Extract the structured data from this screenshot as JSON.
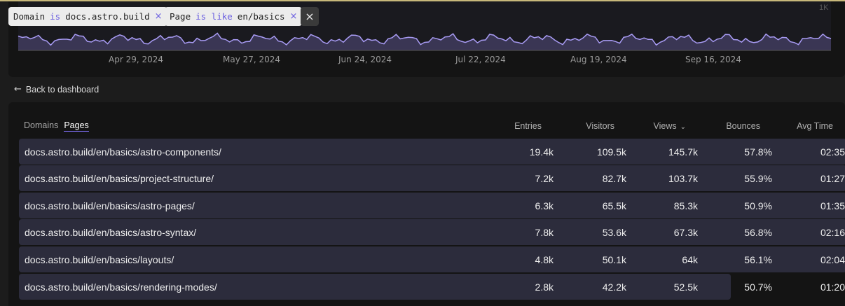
{
  "filters": [
    {
      "field": "Domain",
      "operator": "is",
      "value": "docs.astro.build",
      "remove_icon": "close-icon"
    },
    {
      "field": "Page",
      "operator": "is like",
      "value": "en/basics",
      "remove_icon": "close-icon"
    }
  ],
  "clear_icon": "×",
  "chart": {
    "axis_top_label": "1K",
    "x_labels": [
      "Apr 29, 2024",
      "May 27, 2024",
      "Jun 24, 2024",
      "Jul 22, 2024",
      "Aug 19, 2024",
      "Sep 16, 2024"
    ],
    "line_color": "#a99cf5",
    "fill_color": "#3a3654"
  },
  "back_link": {
    "arrow": "←",
    "label": "Back to dashboard"
  },
  "table": {
    "tabs": [
      {
        "label": "Domains",
        "active": false
      },
      {
        "label": "Pages",
        "active": true
      }
    ],
    "columns": {
      "entries": "Entries",
      "visitors": "Visitors",
      "views": "Views",
      "bounces": "Bounces",
      "avg_time": "Avg Time"
    },
    "sort_icon": "⌄",
    "rows": [
      {
        "page": "docs.astro.build/en/basics/astro-components/",
        "entries": "19.4k",
        "visitors": "109.5k",
        "views": "145.7k",
        "bounces": "57.8%",
        "avg_time": "02:35",
        "bar_fraction": 1.0
      },
      {
        "page": "docs.astro.build/en/basics/project-structure/",
        "entries": "7.2k",
        "visitors": "82.7k",
        "views": "103.7k",
        "bounces": "55.9%",
        "avg_time": "01:27",
        "bar_fraction": 1.0
      },
      {
        "page": "docs.astro.build/en/basics/astro-pages/",
        "entries": "6.3k",
        "visitors": "65.5k",
        "views": "85.3k",
        "bounces": "50.9%",
        "avg_time": "01:35",
        "bar_fraction": 1.0
      },
      {
        "page": "docs.astro.build/en/basics/astro-syntax/",
        "entries": "7.8k",
        "visitors": "53.6k",
        "views": "67.3k",
        "bounces": "56.8%",
        "avg_time": "02:16",
        "bar_fraction": 1.0
      },
      {
        "page": "docs.astro.build/en/basics/layouts/",
        "entries": "4.8k",
        "visitors": "50.1k",
        "views": "64k",
        "bounces": "56.1%",
        "avg_time": "02:04",
        "bar_fraction": 1.0
      },
      {
        "page": "docs.astro.build/en/basics/rendering-modes/",
        "entries": "2.8k",
        "visitors": "42.2k",
        "views": "52.5k",
        "bounces": "50.7%",
        "avg_time": "01:20",
        "bar_fraction": 0.86
      }
    ]
  }
}
